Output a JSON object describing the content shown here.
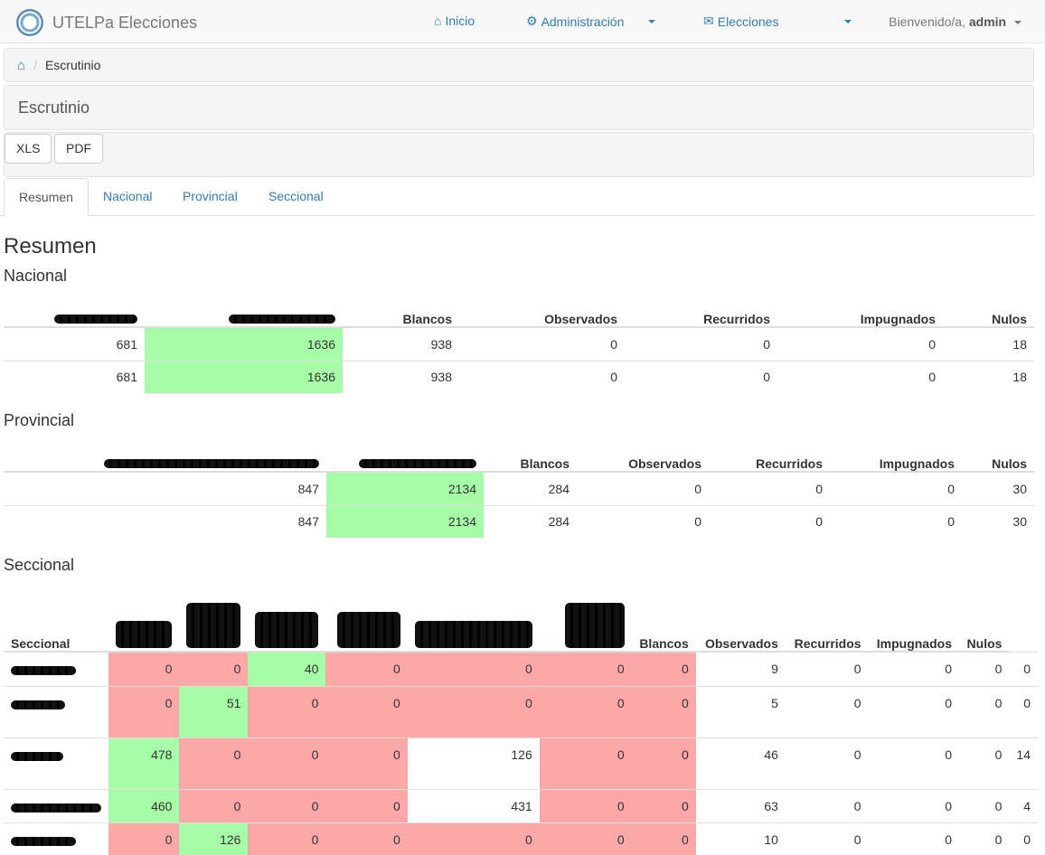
{
  "navbar": {
    "brand": "UTELPa Elecciones",
    "inicio": "Inicio",
    "administracion": "Administración",
    "elecciones": "Elecciones",
    "welcome": "Bienvenido/a,",
    "user": "admin"
  },
  "breadcrumb": {
    "current": "Escrutinio"
  },
  "page_title": "Escrutinio",
  "export": {
    "xls": "XLS",
    "pdf": "PDF"
  },
  "tabs": [
    "Resumen",
    "Nacional",
    "Provincial",
    "Seccional"
  ],
  "content": {
    "heading": "Resumen",
    "nacional": {
      "title": "Nacional",
      "headers": [
        "Blancos",
        "Observados",
        "Recurridos",
        "Impugnados",
        "Nulos"
      ],
      "rows": [
        [
          "681",
          "1636",
          "938",
          "0",
          "0",
          "0",
          "18"
        ],
        [
          "681",
          "1636",
          "938",
          "0",
          "0",
          "0",
          "18"
        ]
      ]
    },
    "provincial": {
      "title": "Provincial",
      "headers": [
        "Blancos",
        "Observados",
        "Recurridos",
        "Impugnados",
        "Nulos"
      ],
      "rows": [
        [
          "847",
          "2134",
          "284",
          "0",
          "0",
          "0",
          "30"
        ],
        [
          "847",
          "2134",
          "284",
          "0",
          "0",
          "0",
          "30"
        ]
      ]
    },
    "seccional": {
      "title": "Seccional",
      "headers": [
        "Seccional",
        "Blancos",
        "Observados",
        "Recurridos",
        "Impugnados",
        "Nulos"
      ],
      "rows": [
        [
          "0",
          "0",
          "40",
          "0",
          "0",
          "0",
          "0",
          "9",
          "0",
          "0",
          "0",
          "0"
        ],
        [
          "0",
          "51",
          "0",
          "0",
          "0",
          "0",
          "0",
          "5",
          "0",
          "0",
          "0",
          "0"
        ],
        [
          "478",
          "0",
          "0",
          "0",
          "126",
          "0",
          "0",
          "46",
          "0",
          "0",
          "0",
          "14"
        ],
        [
          "460",
          "0",
          "0",
          "0",
          "431",
          "0",
          "0",
          "63",
          "0",
          "0",
          "0",
          "4"
        ],
        [
          "0",
          "126",
          "0",
          "0",
          "0",
          "0",
          "0",
          "10",
          "0",
          "0",
          "0",
          "0"
        ]
      ],
      "cell_colors": [
        [
          "red",
          "red",
          "green",
          "red",
          "red",
          "red",
          "red"
        ],
        [
          "red",
          "green",
          "red",
          "red",
          "red",
          "red",
          "red"
        ],
        [
          "green",
          "red",
          "red",
          "red",
          "white",
          "red",
          "red"
        ],
        [
          "green",
          "red",
          "red",
          "red",
          "white",
          "red",
          "red"
        ],
        [
          "red",
          "green",
          "red",
          "red",
          "red",
          "red",
          "red"
        ]
      ]
    }
  },
  "colors": {
    "win": "#a7fda7",
    "lose": "#fda8a8",
    "link": "#337ab7"
  }
}
